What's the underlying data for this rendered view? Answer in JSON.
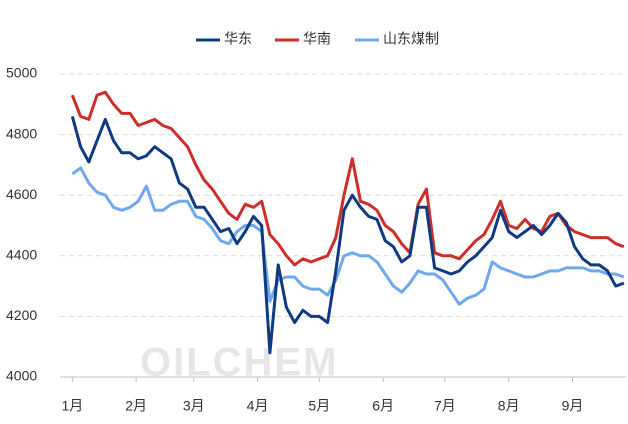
{
  "chart_data": {
    "type": "line",
    "watermark": "OILCHEM",
    "x": [
      0,
      4,
      8,
      12,
      16,
      20,
      24,
      28,
      32,
      36,
      40,
      44,
      48,
      52,
      56,
      60,
      64,
      68,
      72,
      76,
      80,
      84,
      88,
      92,
      96,
      100,
      104,
      108,
      112,
      116,
      120,
      124,
      128,
      132,
      136,
      140,
      144,
      148,
      152,
      156,
      160,
      164,
      168,
      172,
      176,
      180,
      184,
      188,
      192,
      196,
      200,
      204,
      208,
      212,
      216,
      220,
      224,
      228,
      232,
      236,
      240,
      244,
      248,
      252,
      256,
      260,
      264,
      268
    ],
    "series": [
      {
        "name": "华东",
        "color": "#0e3a82",
        "values": [
          4860,
          4760,
          4710,
          4780,
          4850,
          4780,
          4740,
          4740,
          4720,
          4730,
          4760,
          4740,
          4720,
          4640,
          4620,
          4560,
          4560,
          4520,
          4480,
          4490,
          4440,
          4480,
          4530,
          4500,
          4080,
          4370,
          4230,
          4180,
          4220,
          4200,
          4200,
          4180,
          4350,
          4550,
          4600,
          4560,
          4530,
          4520,
          4450,
          4430,
          4380,
          4400,
          4560,
          4560,
          4360,
          4350,
          4340,
          4350,
          4380,
          4400,
          4430,
          4460,
          4550,
          4480,
          4460,
          4480,
          4500,
          4470,
          4500,
          4540,
          4510,
          4430,
          4390,
          4370,
          4370,
          4350,
          4300,
          4310
        ]
      },
      {
        "name": "华南",
        "color": "#cc2f2a",
        "values": [
          4930,
          4860,
          4850,
          4930,
          4940,
          4900,
          4870,
          4870,
          4830,
          4840,
          4850,
          4830,
          4820,
          4790,
          4760,
          4700,
          4650,
          4620,
          4580,
          4540,
          4520,
          4570,
          4560,
          4580,
          4470,
          4440,
          4400,
          4370,
          4390,
          4380,
          4390,
          4400,
          4460,
          4600,
          4720,
          4580,
          4570,
          4550,
          4500,
          4480,
          4440,
          4410,
          4570,
          4620,
          4410,
          4400,
          4400,
          4390,
          4420,
          4450,
          4470,
          4520,
          4580,
          4500,
          4490,
          4520,
          4490,
          4480,
          4530,
          4540,
          4500,
          4480,
          4470,
          4460,
          4460,
          4460,
          4440,
          4430
        ]
      },
      {
        "name": "山东煤制",
        "color": "#6fa8ee",
        "values": [
          4670,
          4690,
          4640,
          4610,
          4600,
          4560,
          4550,
          4560,
          4580,
          4630,
          4550,
          4550,
          4570,
          4580,
          4580,
          4530,
          4520,
          4490,
          4450,
          4440,
          4480,
          4500,
          4500,
          4480,
          4250,
          4320,
          4330,
          4330,
          4300,
          4290,
          4290,
          4270,
          4320,
          4400,
          4410,
          4400,
          4400,
          4380,
          4340,
          4300,
          4280,
          4310,
          4350,
          4340,
          4340,
          4320,
          4280,
          4240,
          4260,
          4270,
          4290,
          4380,
          4360,
          4350,
          4340,
          4330,
          4330,
          4340,
          4350,
          4350,
          4360,
          4360,
          4360,
          4350,
          4350,
          4340,
          4340,
          4330
        ]
      }
    ],
    "xlim": [
      -6,
      269
    ],
    "xticks": [
      {
        "value": 0,
        "label": "1月"
      },
      {
        "value": 31,
        "label": "2月"
      },
      {
        "value": 59,
        "label": "3月"
      },
      {
        "value": 90,
        "label": "4月"
      },
      {
        "value": 120,
        "label": "5月"
      },
      {
        "value": 151,
        "label": "6月"
      },
      {
        "value": 181,
        "label": "7月"
      },
      {
        "value": 212,
        "label": "8月"
      },
      {
        "value": 243,
        "label": "9月"
      }
    ],
    "ylim": [
      4000,
      5000
    ],
    "yticks": [
      4000,
      4200,
      4400,
      4600,
      4800,
      5000
    ],
    "grid": true,
    "legend": "top"
  }
}
